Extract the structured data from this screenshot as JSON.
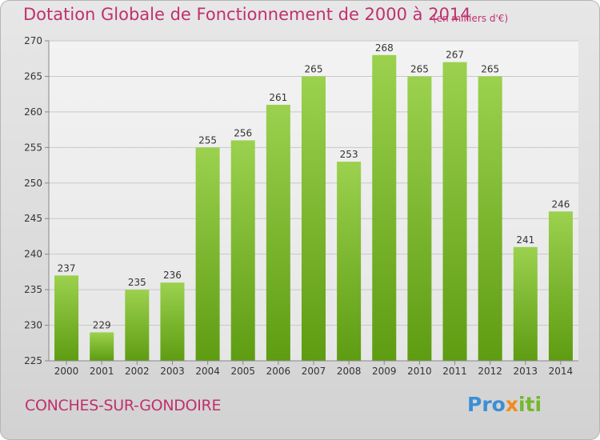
{
  "title": "Dotation Globale de Fonctionnement de 2000 à 2014",
  "unit_note": "(en milliers d'€)",
  "commune": "CONCHES-SUR-GONDOIRE",
  "logo": {
    "part1": "Pro",
    "part2": "x",
    "part3": "iti"
  },
  "colors": {
    "title": "#c0306e",
    "bar_light": "#9bd14e",
    "bar_dark": "#5e9c12",
    "axis": "#888888"
  },
  "chart_data": {
    "type": "bar",
    "title": "Dotation Globale de Fonctionnement de 2000 à 2014",
    "subtitle": "(en milliers d'€)",
    "xlabel": "",
    "ylabel": "",
    "ylim": [
      225,
      270
    ],
    "yticks": [
      225,
      230,
      235,
      240,
      245,
      250,
      255,
      260,
      265,
      270
    ],
    "grid": true,
    "categories": [
      "2000",
      "2001",
      "2002",
      "2003",
      "2004",
      "2005",
      "2006",
      "2007",
      "2008",
      "2009",
      "2010",
      "2011",
      "2012",
      "2013",
      "2014"
    ],
    "values": [
      237,
      229,
      235,
      236,
      255,
      256,
      261,
      265,
      253,
      268,
      265,
      267,
      265,
      241,
      246
    ]
  }
}
